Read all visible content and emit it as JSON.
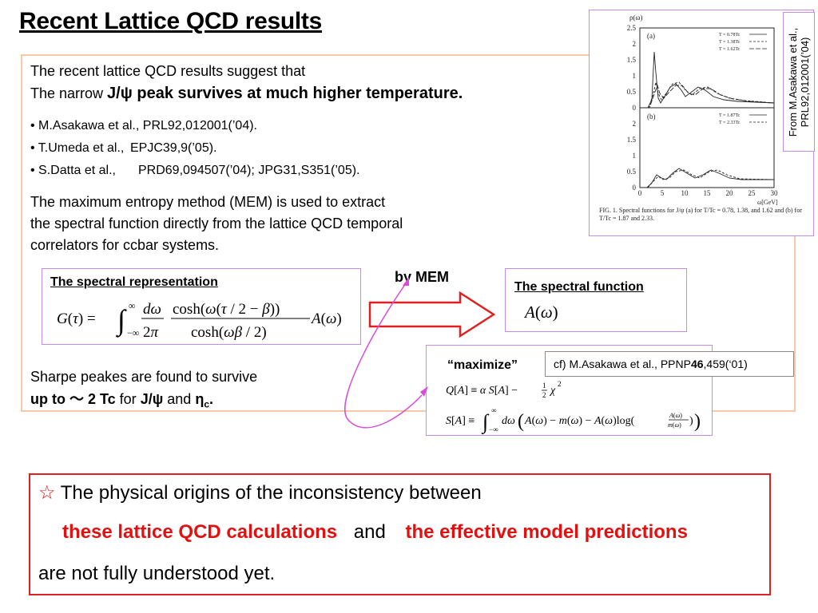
{
  "title": "Recent Lattice QCD results",
  "intro": {
    "line1": "The recent lattice QCD results suggest that",
    "line2_prefix": "The narrow ",
    "line2_rest": "J/ψ peak survives at much higher temperature."
  },
  "references": [
    {
      "author": "• M.Asakawa et al.,",
      "cite": "PRL92,012001(’04)."
    },
    {
      "author": "• T.Umeda et al.,",
      "cite": "EPJC39,9(’05)."
    },
    {
      "author": "• S.Datta et al.,",
      "cite": "PRD69,094507(’04); JPG31,S351(’05)."
    }
  ],
  "mem_text": {
    "p1": "The ",
    "p2": "maximum entropy method (MEM)",
    "p3": " is used to extract",
    "p4": "the ",
    "p5": "spectral function",
    "p6": " directly from the ",
    "p7": "lattice QCD temporal",
    "p8": "correlators",
    "p9": " for ccbar systems."
  },
  "spectral_rep": {
    "label": "The spectral representation"
  },
  "arrow_label": "by MEM",
  "spectral_function": {
    "label": "The spectral function",
    "formula": "A(ω)"
  },
  "maximize": {
    "label": "“maximize”",
    "cf_text": "cf) M.Asakawa et al., PPNP",
    "cf_bold": "46",
    "cf_rest": ",459(‘01)"
  },
  "sharp": {
    "p1": "Sharpe peakes",
    "p2": " are found to survive",
    "p3": "up to ～ 2 Tc",
    "p4": " for ",
    "p5": "J/ψ",
    "p6": " and ",
    "p7": "η",
    "p8": "c",
    "p9": "."
  },
  "conclusion": {
    "star": "☆",
    "line1": " The physical origins of the inconsistency between",
    "red1": "these lattice QCD calculations",
    "and": "and",
    "red2": "the effective model predictions",
    "line3": "are not fully understood yet."
  },
  "figure": {
    "ylabel": "ρ(ω)",
    "xlabel": "ω[GeV]",
    "panel_a": "(a)",
    "panel_b": "(b)",
    "legend_a": [
      "T = 0.78Tc",
      "T = 1.38Tc",
      "T = 1.62Tc"
    ],
    "legend_b": [
      "T = 1.87Tc",
      "T = 2.33Tc"
    ],
    "yticks_a": [
      "2.5",
      "2",
      "1.5",
      "1",
      "0.5",
      "0"
    ],
    "yticks_b": [
      "2",
      "1.5",
      "1",
      "0.5",
      "0"
    ],
    "xticks": [
      "0",
      "5",
      "10",
      "15",
      "20",
      "25",
      "30"
    ],
    "caption": "FIG. 1.   Spectral functions for J/ψ (a) for T/Tc = 0.78, 1.38, and 1.62 and (b) for T/Tc = 1.87 and 2.33."
  },
  "source_note": "From M.Asakawa et al., PRL92,012001(’04)"
}
